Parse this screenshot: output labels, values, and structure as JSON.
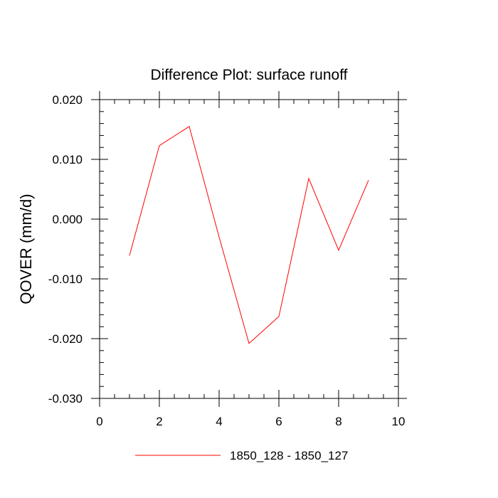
{
  "chart_data": {
    "type": "line",
    "title": "Difference Plot: surface runoff",
    "xlabel": "",
    "ylabel": "QOVER  (mm/d)",
    "xlim": [
      0,
      10
    ],
    "ylim": [
      -0.03,
      0.02
    ],
    "x_ticks": [
      0,
      2,
      4,
      6,
      8,
      10
    ],
    "x_tick_labels": [
      "0",
      "2",
      "4",
      "6",
      "8",
      "10"
    ],
    "y_ticks": [
      -0.03,
      -0.02,
      -0.01,
      0.0,
      0.01,
      0.02
    ],
    "y_tick_labels": [
      "-0.030",
      "-0.020",
      "-0.010",
      "0.000",
      "0.010",
      "0.020"
    ],
    "grid": false,
    "legend_position": "bottom-center",
    "series": [
      {
        "name": "1850_128 - 1850_127",
        "color": "#ff0000",
        "x": [
          1,
          2,
          3,
          4,
          5,
          6,
          7,
          8,
          9
        ],
        "y": [
          -0.0061,
          0.0123,
          0.0155,
          -0.003,
          -0.0208,
          -0.0163,
          0.0068,
          -0.0052,
          0.0065
        ]
      }
    ]
  }
}
